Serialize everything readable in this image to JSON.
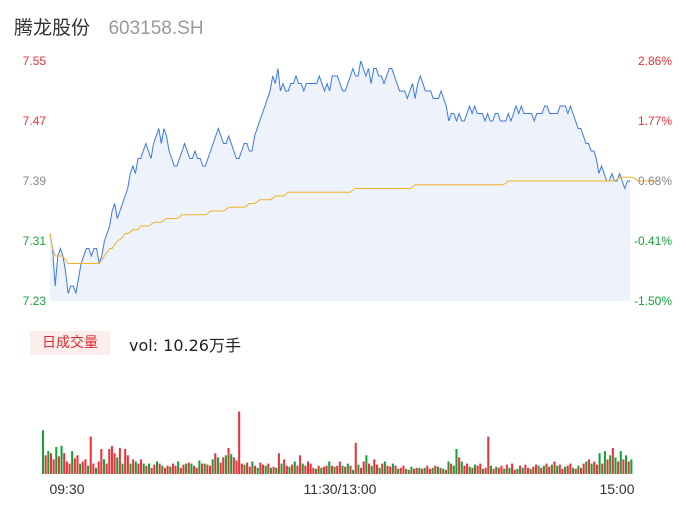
{
  "header": {
    "name": "腾龙股份",
    "code": "603158.SH"
  },
  "volume_panel": {
    "badge": "日成交量",
    "summary": "vol: 10.26万手"
  },
  "colors": {
    "up": "#e8333b",
    "down": "#13a238",
    "flat": "#888888",
    "price_line": "#3a78e8",
    "avg_line": "#f0b323",
    "area_fill": "#edf2fb"
  },
  "chart_data": [
    {
      "type": "line",
      "title": "",
      "ylabel_left": [
        "7.55",
        "7.47",
        "7.39",
        "7.31",
        "7.23"
      ],
      "ylabel_right": [
        "2.86%",
        "1.77%",
        "0.68%",
        "-0.41%",
        "-1.50%"
      ],
      "ylim": [
        7.23,
        7.55
      ],
      "prev_close": 7.34,
      "xlabels": [
        "09:30",
        "11:30/13:00",
        "15:00"
      ],
      "series": [
        {
          "values": [
            7.32,
            7.3,
            7.25,
            7.29,
            7.3,
            7.29,
            7.27,
            7.24,
            7.25,
            7.25,
            7.24,
            7.26,
            7.28,
            7.29,
            7.3,
            7.3,
            7.29,
            7.3,
            7.3,
            7.28,
            7.29,
            7.31,
            7.32,
            7.33,
            7.35,
            7.36,
            7.34,
            7.35,
            7.36,
            7.37,
            7.38,
            7.4,
            7.41,
            7.4,
            7.42,
            7.42,
            7.43,
            7.44,
            7.43,
            7.42,
            7.44,
            7.45,
            7.46,
            7.44,
            7.46,
            7.45,
            7.43,
            7.42,
            7.41,
            7.41,
            7.42,
            7.43,
            7.44,
            7.43,
            7.42,
            7.42,
            7.43,
            7.42,
            7.42,
            7.41,
            7.41,
            7.42,
            7.43,
            7.44,
            7.45,
            7.46,
            7.45,
            7.44,
            7.44,
            7.45,
            7.44,
            7.43,
            7.42,
            7.42,
            7.43,
            7.44,
            7.44,
            7.43,
            7.43,
            7.45,
            7.46,
            7.47,
            7.48,
            7.49,
            7.5,
            7.51,
            7.53,
            7.52,
            7.54,
            7.51,
            7.52,
            7.51,
            7.51,
            7.52,
            7.52,
            7.53,
            7.52,
            7.52,
            7.51,
            7.52,
            7.52,
            7.52,
            7.52,
            7.52,
            7.53,
            7.52,
            7.51,
            7.52,
            7.51,
            7.53,
            7.53,
            7.53,
            7.52,
            7.51,
            7.51,
            7.52,
            7.53,
            7.54,
            7.53,
            7.53,
            7.55,
            7.54,
            7.53,
            7.54,
            7.52,
            7.54,
            7.54,
            7.53,
            7.53,
            7.52,
            7.53,
            7.54,
            7.54,
            7.53,
            7.52,
            7.51,
            7.51,
            7.51,
            7.5,
            7.51,
            7.52,
            7.5,
            7.52,
            7.53,
            7.52,
            7.51,
            7.51,
            7.51,
            7.5,
            7.5,
            7.5,
            7.51,
            7.5,
            7.49,
            7.47,
            7.48,
            7.48,
            7.47,
            7.48,
            7.47,
            7.47,
            7.48,
            7.49,
            7.48,
            7.49,
            7.48,
            7.48,
            7.48,
            7.47,
            7.48,
            7.47,
            7.47,
            7.48,
            7.48,
            7.47,
            7.47,
            7.47,
            7.48,
            7.47,
            7.48,
            7.49,
            7.48,
            7.49,
            7.48,
            7.48,
            7.48,
            7.48,
            7.47,
            7.48,
            7.48,
            7.48,
            7.49,
            7.49,
            7.48,
            7.48,
            7.48,
            7.48,
            7.49,
            7.49,
            7.49,
            7.48,
            7.49,
            7.48,
            7.47,
            7.46,
            7.46,
            7.45,
            7.44,
            7.44,
            7.43,
            7.43,
            7.42,
            7.4,
            7.41,
            7.4,
            7.39,
            7.39,
            7.4,
            7.39,
            7.39,
            7.4,
            7.39,
            7.38,
            7.39,
            7.39
          ]
        },
        {
          "name": "",
          "values": [
            7.32,
            7.3,
            7.29,
            7.29,
            7.29,
            7.29,
            7.285,
            7.28,
            7.28,
            7.28,
            7.28,
            7.28,
            7.28,
            7.28,
            7.28,
            7.28,
            7.28,
            7.28,
            7.28,
            7.28,
            7.285,
            7.29,
            7.295,
            7.3,
            7.3,
            7.305,
            7.31,
            7.312,
            7.315,
            7.32,
            7.32,
            7.322,
            7.325,
            7.325,
            7.325,
            7.33,
            7.33,
            7.33,
            7.33,
            7.332,
            7.335,
            7.335,
            7.335,
            7.335,
            7.338,
            7.34,
            7.34,
            7.34,
            7.34,
            7.34,
            7.342,
            7.345,
            7.345,
            7.345,
            7.345,
            7.345,
            7.345,
            7.345,
            7.345,
            7.345,
            7.345,
            7.347,
            7.35,
            7.35,
            7.35,
            7.35,
            7.35,
            7.35,
            7.352,
            7.355,
            7.355,
            7.355,
            7.355,
            7.355,
            7.355,
            7.355,
            7.357,
            7.36,
            7.36,
            7.36,
            7.362,
            7.365,
            7.365,
            7.365,
            7.365,
            7.365,
            7.367,
            7.37,
            7.37,
            7.37,
            7.37,
            7.372,
            7.375,
            7.375,
            7.375,
            7.375,
            7.375,
            7.375,
            7.375,
            7.375,
            7.375,
            7.375,
            7.375,
            7.375,
            7.375,
            7.375,
            7.375,
            7.375,
            7.375,
            7.375,
            7.375,
            7.375,
            7.375,
            7.375,
            7.375,
            7.375,
            7.375,
            7.378,
            7.38,
            7.38,
            7.38,
            7.38,
            7.38,
            7.38,
            7.38,
            7.38,
            7.38,
            7.38,
            7.38,
            7.38,
            7.38,
            7.38,
            7.38,
            7.38,
            7.38,
            7.38,
            7.38,
            7.38,
            7.38,
            7.38,
            7.382,
            7.385,
            7.385,
            7.385,
            7.385,
            7.385,
            7.385,
            7.385,
            7.385,
            7.385,
            7.385,
            7.385,
            7.385,
            7.385,
            7.385,
            7.385,
            7.385,
            7.385,
            7.385,
            7.385,
            7.385,
            7.385,
            7.385,
            7.385,
            7.385,
            7.385,
            7.385,
            7.385,
            7.385,
            7.385,
            7.385,
            7.385,
            7.385,
            7.385,
            7.385,
            7.385,
            7.387,
            7.39,
            7.39,
            7.39,
            7.39,
            7.39,
            7.39,
            7.39,
            7.39,
            7.39,
            7.39,
            7.39,
            7.39,
            7.39,
            7.39,
            7.39,
            7.39,
            7.39,
            7.39,
            7.39,
            7.39,
            7.39,
            7.39,
            7.39,
            7.39,
            7.39,
            7.39,
            7.39,
            7.39,
            7.39,
            7.39,
            7.39,
            7.39,
            7.39,
            7.39,
            7.39,
            7.39,
            7.39,
            7.39,
            7.39,
            7.39,
            7.39,
            7.39,
            7.392,
            7.395,
            7.395,
            7.395,
            7.395,
            7.395,
            7.395,
            7.393,
            7.39,
            7.39,
            7.39,
            7.39,
            7.39,
            7.39,
            7.39,
            7.39,
            7.39
          ]
        }
      ]
    },
    {
      "type": "bar",
      "title": "",
      "ylim": [
        0,
        100
      ],
      "values": [
        42,
        18,
        22,
        20,
        14,
        26,
        17,
        27,
        20,
        12,
        10,
        22,
        15,
        18,
        10,
        12,
        14,
        8,
        36,
        10,
        6,
        12,
        24,
        14,
        10,
        24,
        27,
        20,
        16,
        25,
        10,
        24,
        18,
        10,
        14,
        12,
        10,
        14,
        10,
        8,
        10,
        6,
        9,
        12,
        10,
        8,
        6,
        8,
        7,
        10,
        8,
        12,
        6,
        9,
        10,
        11,
        10,
        8,
        6,
        13,
        10,
        10,
        9,
        8,
        14,
        20,
        16,
        11,
        16,
        18,
        25,
        19,
        16,
        13,
        60,
        10,
        9,
        11,
        7,
        12,
        8,
        6,
        11,
        9,
        8,
        10,
        6,
        7,
        6,
        20,
        10,
        14,
        8,
        7,
        9,
        12,
        8,
        18,
        10,
        8,
        12,
        10,
        6,
        5,
        8,
        6,
        7,
        8,
        12,
        8,
        7,
        8,
        12,
        8,
        7,
        10,
        8,
        4,
        30,
        9,
        6,
        12,
        18,
        10,
        8,
        14,
        9,
        6,
        10,
        12,
        8,
        7,
        10,
        8,
        5,
        6,
        8,
        5,
        4,
        7,
        5,
        6,
        6,
        5,
        6,
        8,
        5,
        6,
        8,
        7,
        6,
        5,
        4,
        12,
        10,
        8,
        24,
        16,
        12,
        8,
        10,
        7,
        6,
        9,
        8,
        10,
        5,
        6,
        36,
        8,
        5,
        7,
        6,
        8,
        5,
        9,
        6,
        10,
        4,
        5,
        8,
        6,
        9,
        6,
        5,
        7,
        9,
        8,
        6,
        8,
        10,
        7,
        9,
        12,
        8,
        9,
        5,
        7,
        8,
        10,
        6,
        5,
        8,
        6,
        10,
        12,
        14,
        10,
        12,
        9,
        20,
        10,
        22,
        14,
        18,
        25,
        16,
        12,
        22,
        14,
        18,
        12,
        14
      ],
      "directions": [
        "d",
        "u",
        "d",
        "u",
        "u",
        "d",
        "u",
        "d",
        "u",
        "u",
        "u",
        "d",
        "u",
        "u",
        "d",
        "u",
        "u",
        "d",
        "u",
        "u",
        "d",
        "u",
        "u",
        "d",
        "u",
        "u",
        "u",
        "u",
        "d",
        "u",
        "d",
        "u",
        "u",
        "d",
        "u",
        "d",
        "u",
        "u",
        "d",
        "u",
        "d",
        "u",
        "u",
        "d",
        "u",
        "d",
        "u",
        "u",
        "d",
        "u",
        "u",
        "d",
        "u",
        "u",
        "d",
        "u",
        "d",
        "u",
        "u",
        "d",
        "u",
        "d",
        "u",
        "u",
        "d",
        "u",
        "d",
        "u",
        "u",
        "d",
        "u",
        "d",
        "u",
        "u",
        "u",
        "u",
        "d",
        "u",
        "u",
        "d",
        "u",
        "d",
        "u",
        "u",
        "d",
        "u",
        "d",
        "u",
        "d",
        "u",
        "d",
        "u",
        "u",
        "d",
        "u",
        "d",
        "u",
        "u",
        "d",
        "u",
        "u",
        "u",
        "u",
        "d",
        "u",
        "d",
        "u",
        "u",
        "d",
        "u",
        "d",
        "u",
        "u",
        "d",
        "u",
        "d",
        "u",
        "d",
        "u",
        "d",
        "u",
        "u",
        "d",
        "u",
        "d",
        "u",
        "u",
        "d",
        "u",
        "d",
        "u",
        "u",
        "d",
        "u",
        "d",
        "u",
        "u",
        "d",
        "u",
        "d",
        "u",
        "u",
        "d",
        "u",
        "d",
        "u",
        "u",
        "d",
        "u",
        "d",
        "u",
        "d",
        "u",
        "d",
        "u",
        "d",
        "d",
        "u",
        "d",
        "u",
        "u",
        "d",
        "u",
        "d",
        "u",
        "u",
        "d",
        "u",
        "u",
        "d",
        "u",
        "d",
        "u",
        "u",
        "d",
        "u",
        "d",
        "u",
        "u",
        "d",
        "u",
        "d",
        "u",
        "u",
        "d",
        "u",
        "u",
        "d",
        "u",
        "d",
        "u",
        "u",
        "d",
        "u",
        "d",
        "u",
        "u",
        "d",
        "u",
        "u",
        "d",
        "u",
        "d",
        "u",
        "u",
        "d",
        "u",
        "d",
        "u",
        "u",
        "d",
        "u",
        "d",
        "u",
        "d",
        "u",
        "d",
        "u",
        "d",
        "u",
        "d",
        "u",
        "d",
        "u",
        "d",
        "u",
        "u",
        "d",
        "u"
      ]
    }
  ]
}
